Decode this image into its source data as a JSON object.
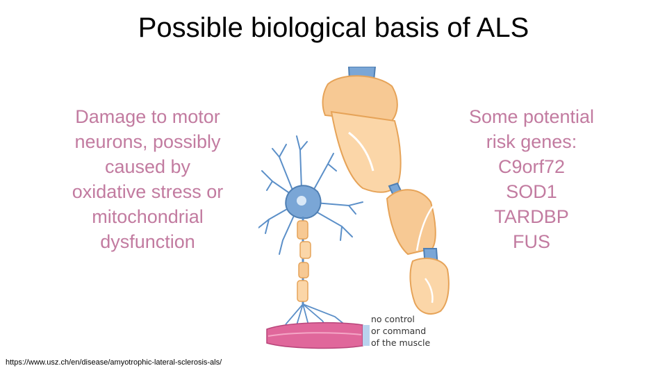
{
  "slide": {
    "title": "Possible biological basis of ALS",
    "left_text": [
      "Damage to motor",
      "neurons, possibly",
      "caused by",
      "oxidative stress or",
      "mitochondrial",
      "dysfunction"
    ],
    "right_text": [
      "Some potential",
      "risk genes:",
      "C9orf72",
      "SOD1",
      "TARDBP",
      "FUS"
    ],
    "image_caption": [
      "no control",
      "or command",
      "of the muscle"
    ],
    "source_url": "https://www.usz.ch/en/disease/amyotrophic-lateral-sclerosis-als/"
  },
  "colors": {
    "title": "#000000",
    "body_text": "#c27ba0",
    "axon_blue": "#7aa6d6",
    "myelin_orange": "#f7c994",
    "muscle_pink": "#e0679b"
  }
}
